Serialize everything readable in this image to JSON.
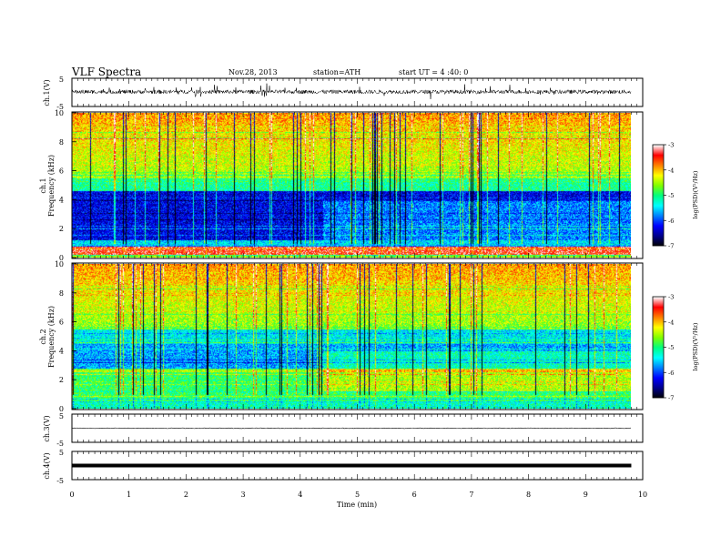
{
  "header": {
    "title": "VLF Spectra",
    "date": "Nov.28, 2013",
    "station": "station=ATH",
    "start": "start UT = 4 :40: 0"
  },
  "chart_data": {
    "type": "heatmap",
    "xlabel": "Time (min)",
    "xlim": [
      0,
      10
    ],
    "x_ticks": [
      "0",
      "1",
      "2",
      "3",
      "4",
      "5",
      "6",
      "7",
      "8",
      "9",
      "10"
    ],
    "data_end_minute": 9.8,
    "panels": [
      {
        "id": "ch1-wave",
        "type": "line",
        "ylabel": "ch.1(V)",
        "ylim": [
          -5,
          5
        ],
        "y_ticks": [
          "5",
          "-5"
        ]
      },
      {
        "id": "ch1-spec",
        "type": "heatmap",
        "ylabel_top": "ch.1",
        "ylabel": "Frequency (kHz)",
        "ylim": [
          0,
          10
        ],
        "y_ticks": [
          "0",
          "2",
          "4",
          "6",
          "8",
          "10"
        ],
        "colorbar": {
          "label": "log(PSD)(V²/Hz)",
          "range": [
            -7,
            -3
          ],
          "ticks": [
            "-3",
            "-4",
            "-5",
            "-6",
            "-7"
          ]
        },
        "hot_band_khz": [
          0.2,
          0.8
        ],
        "step_change_minute": 4.4
      },
      {
        "id": "ch2-spec",
        "type": "heatmap",
        "ylabel_top": "ch.2",
        "ylabel": "Frequency (kHz)",
        "ylim": [
          0,
          10
        ],
        "y_ticks": [
          "0",
          "2",
          "4",
          "6",
          "8",
          "10"
        ],
        "colorbar": {
          "label": "log(PSD)(V²/Hz)",
          "range": [
            -7,
            -3
          ],
          "ticks": [
            "-3",
            "-4",
            "-5",
            "-6",
            "-7"
          ]
        },
        "step_change_minute": 4.4
      },
      {
        "id": "ch3-wave",
        "type": "line",
        "ylabel": "ch.3(V)",
        "ylim": [
          -5,
          5
        ],
        "y_ticks": [
          "5",
          "-5"
        ],
        "level": 0
      },
      {
        "id": "ch4-wave",
        "type": "line",
        "ylabel": "ch.4(V)",
        "ylim": [
          -5,
          5
        ],
        "y_ticks": [
          "5",
          "-5"
        ],
        "level": 0
      }
    ],
    "colormap": [
      "#000000",
      "#00008b",
      "#0000ff",
      "#0080ff",
      "#00ffff",
      "#00ff80",
      "#80ff00",
      "#ffff00",
      "#ff8000",
      "#ff0000",
      "#ffffff"
    ]
  }
}
